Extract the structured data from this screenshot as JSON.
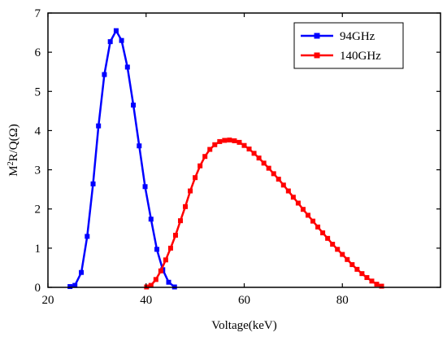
{
  "chart_data": {
    "type": "line",
    "xlabel": "Voltage(keV)",
    "ylabel": {
      "base": "M",
      "sup": "2",
      "rest": "R/Q(Ω)"
    },
    "xlim": [
      20,
      100
    ],
    "ylim": [
      0,
      7
    ],
    "xticks": [
      20,
      40,
      60,
      80
    ],
    "yticks": [
      0,
      1,
      2,
      3,
      4,
      5,
      6,
      7
    ],
    "grid": false,
    "legend_position": "top-right",
    "series": [
      {
        "name": "94GHz",
        "color": "#0000ff",
        "marker": "square",
        "x": [
          24.5,
          25.5,
          26.8,
          28.0,
          29.2,
          30.3,
          31.5,
          32.7,
          33.9,
          35.0,
          36.2,
          37.4,
          38.6,
          39.8,
          41.0,
          42.2,
          43.4,
          44.6,
          45.8
        ],
        "y": [
          0.02,
          0.05,
          0.38,
          1.3,
          2.64,
          4.12,
          5.43,
          6.27,
          6.55,
          6.3,
          5.62,
          4.65,
          3.61,
          2.57,
          1.74,
          0.97,
          0.45,
          0.13,
          0.01
        ]
      },
      {
        "name": "140GHz",
        "color": "#ff0000",
        "marker": "square",
        "x": [
          40.1,
          41.0,
          42.0,
          43.0,
          44.0,
          45.0,
          46.0,
          47.0,
          48.0,
          49.0,
          50.0,
          51.0,
          52.0,
          53.0,
          54.0,
          55.0,
          56.0,
          57.0,
          58.0,
          59.0,
          60.0,
          61.0,
          62.0,
          63.0,
          64.0,
          65.0,
          66.0,
          67.0,
          68.0,
          69.0,
          70.0,
          71.0,
          72.0,
          73.0,
          74.0,
          75.0,
          76.0,
          77.0,
          78.0,
          79.0,
          80.0,
          81.0,
          82.0,
          83.0,
          84.0,
          85.0,
          86.0,
          87.0,
          88.0
        ],
        "y": [
          0.01,
          0.05,
          0.2,
          0.42,
          0.7,
          1.0,
          1.33,
          1.7,
          2.06,
          2.46,
          2.8,
          3.1,
          3.34,
          3.52,
          3.64,
          3.72,
          3.75,
          3.76,
          3.74,
          3.7,
          3.62,
          3.53,
          3.42,
          3.3,
          3.17,
          3.04,
          2.9,
          2.76,
          2.61,
          2.46,
          2.3,
          2.15,
          1.99,
          1.84,
          1.69,
          1.54,
          1.39,
          1.25,
          1.1,
          0.97,
          0.84,
          0.71,
          0.58,
          0.46,
          0.35,
          0.25,
          0.16,
          0.08,
          0.03
        ]
      }
    ]
  }
}
